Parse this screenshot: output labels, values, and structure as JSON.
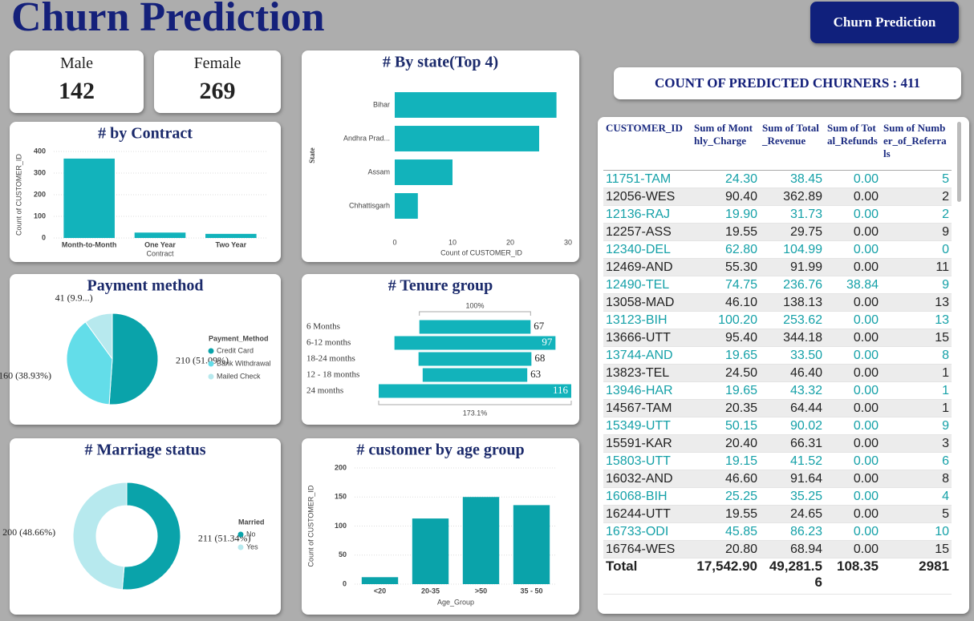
{
  "header": {
    "title": "Churn Prediction",
    "button": "Churn Prediction"
  },
  "cards": [
    {
      "label": "Male",
      "value": 142
    },
    {
      "label": "Female",
      "value": 269
    }
  ],
  "kpi": {
    "text": "COUNT OF PREDICTED CHURNERS : 411"
  },
  "chart_data": [
    {
      "type": "bar",
      "title": "# by Contract",
      "categories": [
        "Month-to-Month",
        "One Year",
        "Two Year"
      ],
      "values": [
        367,
        25,
        19
      ],
      "color": "#12b3bb",
      "ylim": [
        0,
        400
      ],
      "yticks": [
        0,
        100,
        200,
        300,
        400
      ],
      "grid": true,
      "x_label": "Contract",
      "y_label": "Count of CUSTOMER_ID"
    },
    {
      "type": "bar",
      "orientation": "horizontal",
      "title": "# By state(Top 4)",
      "categories": [
        "Bihar",
        "Andhra Prad...",
        "Assam",
        "Chhattisgarh"
      ],
      "values": [
        28,
        25,
        10,
        4
      ],
      "color": "#12b3bb",
      "xlim": [
        0,
        30
      ],
      "xticks": [
        0,
        10,
        20,
        30
      ],
      "grid": false,
      "x_label": "Count of CUSTOMER_ID",
      "y_label": "State"
    },
    {
      "type": "pie",
      "title": "Payment method",
      "legend_title": "Payment_Method",
      "categories": [
        "Credit Card",
        "Bank Withdrawal",
        "Mailed Check"
      ],
      "values": [
        210,
        160,
        41
      ],
      "value_labels": [
        "210 (51.09%)",
        "160 (38.93%)",
        "41 (9.9...)"
      ],
      "colors": [
        "#0aa3aa",
        "#63dde9",
        "#b7e9ee"
      ],
      "legend": "right"
    },
    {
      "type": "funnel",
      "title": "# Tenure group",
      "categories": [
        "6 Months",
        "6-12 months",
        "18-24 months",
        "12 - 18 months",
        "24 months"
      ],
      "values": [
        67,
        97,
        68,
        63,
        116
      ],
      "color": "#12b3bb",
      "annotations": [
        "100%",
        "173.1%"
      ]
    },
    {
      "type": "donut",
      "title": "# Marriage status",
      "legend_title": "Married",
      "categories": [
        "No",
        "Yes"
      ],
      "values": [
        211,
        200
      ],
      "value_labels": [
        "211 (51.34%)",
        "200 (48.66%)"
      ],
      "colors": [
        "#0aa3aa",
        "#b7e9ee"
      ],
      "legend": "right"
    },
    {
      "type": "bar",
      "title": "# customer by age group",
      "categories": [
        "<20",
        "20-35",
        ">50",
        "35 - 50"
      ],
      "values": [
        12,
        113,
        150,
        136
      ],
      "color": "#0aa3aa",
      "ylim": [
        0,
        200
      ],
      "yticks": [
        0,
        50,
        100,
        150,
        200
      ],
      "grid": true,
      "x_label": "Age_Group",
      "y_label": "Count of CUSTOMER_ID"
    }
  ],
  "table": {
    "columns": [
      "CUSTOMER_ID",
      "Sum of Monthly_Charge",
      "Sum of Total_Revenue",
      "Sum of Total_Refunds",
      "Sum of Number_of_Referrals"
    ],
    "rows": [
      [
        "11751-TAM",
        "24.30",
        "38.45",
        "0.00",
        "5"
      ],
      [
        "12056-WES",
        "90.40",
        "362.89",
        "0.00",
        "2"
      ],
      [
        "12136-RAJ",
        "19.90",
        "31.73",
        "0.00",
        "2"
      ],
      [
        "12257-ASS",
        "19.55",
        "29.75",
        "0.00",
        "9"
      ],
      [
        "12340-DEL",
        "62.80",
        "104.99",
        "0.00",
        "0"
      ],
      [
        "12469-AND",
        "55.30",
        "91.99",
        "0.00",
        "11"
      ],
      [
        "12490-TEL",
        "74.75",
        "236.76",
        "38.84",
        "9"
      ],
      [
        "13058-MAD",
        "46.10",
        "138.13",
        "0.00",
        "13"
      ],
      [
        "13123-BIH",
        "100.20",
        "253.62",
        "0.00",
        "13"
      ],
      [
        "13666-UTT",
        "95.40",
        "344.18",
        "0.00",
        "15"
      ],
      [
        "13744-AND",
        "19.65",
        "33.50",
        "0.00",
        "8"
      ],
      [
        "13823-TEL",
        "24.50",
        "46.40",
        "0.00",
        "1"
      ],
      [
        "13946-HAR",
        "19.65",
        "43.32",
        "0.00",
        "1"
      ],
      [
        "14567-TAM",
        "20.35",
        "64.44",
        "0.00",
        "1"
      ],
      [
        "15349-UTT",
        "50.15",
        "90.02",
        "0.00",
        "9"
      ],
      [
        "15591-KAR",
        "20.40",
        "66.31",
        "0.00",
        "3"
      ],
      [
        "15803-UTT",
        "19.15",
        "41.52",
        "0.00",
        "6"
      ],
      [
        "16032-AND",
        "46.60",
        "91.64",
        "0.00",
        "8"
      ],
      [
        "16068-BIH",
        "25.25",
        "35.25",
        "0.00",
        "4"
      ],
      [
        "16244-UTT",
        "19.55",
        "24.65",
        "0.00",
        "5"
      ],
      [
        "16733-ODI",
        "45.85",
        "86.23",
        "0.00",
        "10"
      ],
      [
        "16764-WES",
        "20.80",
        "68.94",
        "0.00",
        "15"
      ]
    ],
    "total": [
      "Total",
      "17,542.90",
      "49,281.56",
      "108.35",
      "2981"
    ]
  }
}
